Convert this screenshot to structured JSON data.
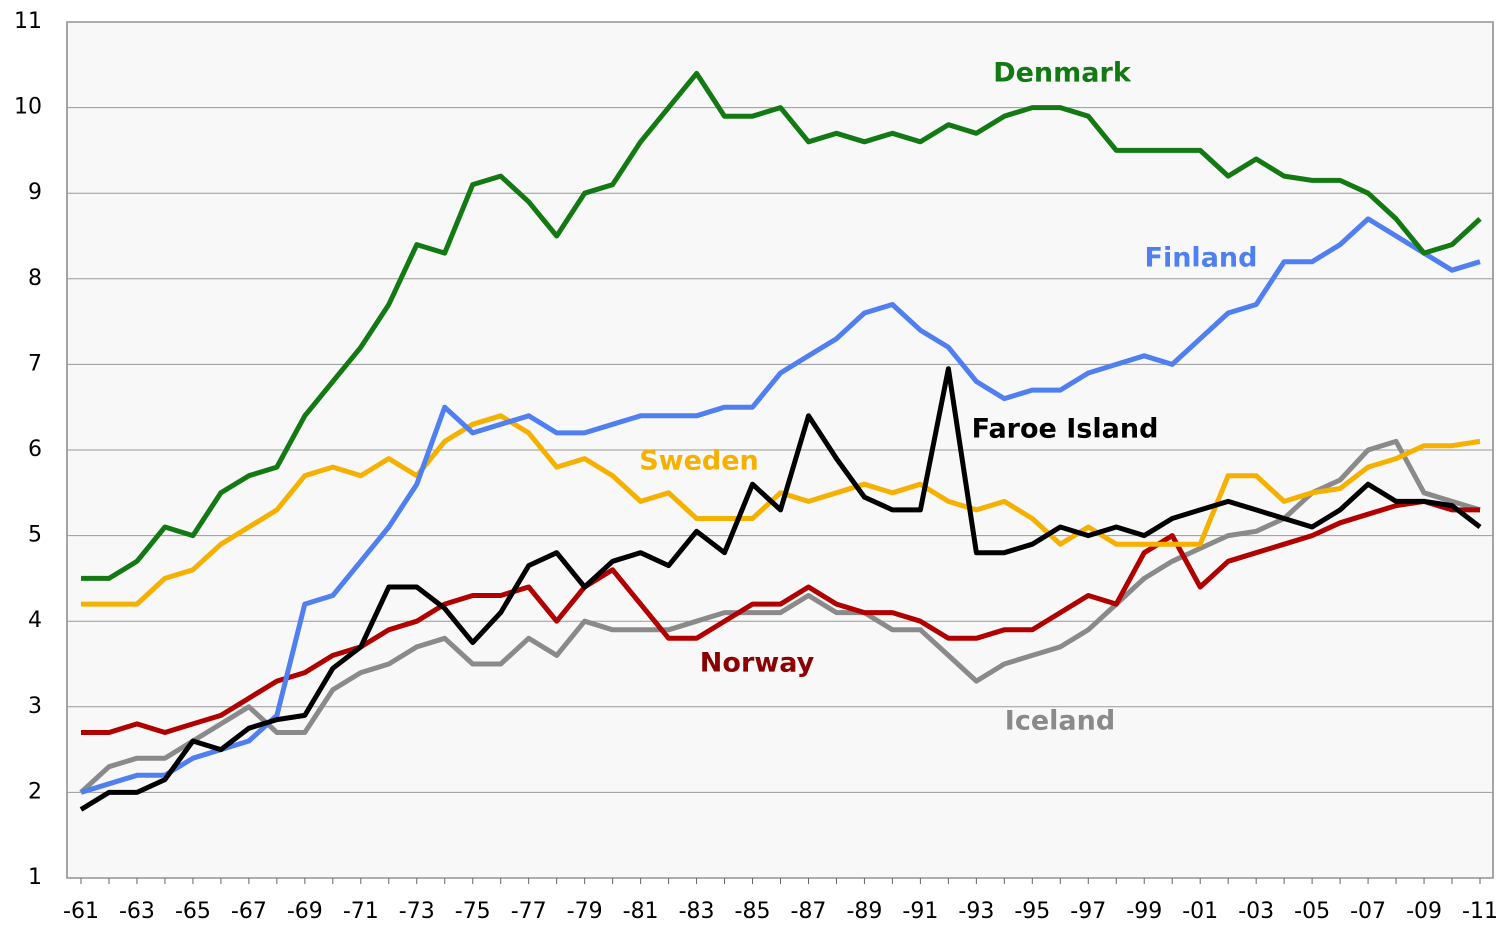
{
  "chart_data": {
    "type": "line",
    "categories": [
      "-61",
      null,
      "-63",
      null,
      "-65",
      null,
      "-67",
      null,
      "-69",
      null,
      "-71",
      null,
      "-73",
      null,
      "-75",
      null,
      "-77",
      null,
      "-79",
      null,
      "-81",
      null,
      "-83",
      null,
      "-85",
      null,
      "-87",
      null,
      "-89",
      null,
      "-91",
      null,
      "-93",
      null,
      "-95",
      null,
      "-97",
      null,
      "-99",
      null,
      "-01",
      null,
      "-03",
      null,
      "-05",
      null,
      "-07",
      null,
      "-09",
      null,
      "-11"
    ],
    "ylim": [
      1,
      11
    ],
    "yticks": [
      1,
      2,
      3,
      4,
      5,
      6,
      7,
      8,
      9,
      10,
      11
    ],
    "grid": true,
    "series": [
      {
        "name": "Iceland",
        "color": "#8a8a8a",
        "values": [
          2.0,
          2.3,
          2.4,
          2.4,
          2.6,
          2.8,
          3.0,
          2.7,
          2.7,
          3.2,
          3.4,
          3.5,
          3.7,
          3.8,
          3.5,
          3.5,
          3.8,
          3.6,
          4.0,
          3.9,
          3.9,
          3.9,
          4.0,
          4.1,
          4.1,
          4.1,
          4.3,
          4.1,
          4.1,
          3.9,
          3.9,
          3.6,
          3.3,
          3.5,
          3.6,
          3.7,
          3.9,
          4.2,
          4.5,
          4.7,
          4.85,
          5.0,
          5.05,
          5.2,
          5.5,
          5.65,
          6.0,
          6.1,
          5.5,
          5.4,
          5.3
        ]
      },
      {
        "name": "Norway",
        "color": "#b00000",
        "values": [
          2.7,
          2.7,
          2.8,
          2.7,
          2.8,
          2.9,
          3.1,
          3.3,
          3.4,
          3.6,
          3.7,
          3.9,
          4.0,
          4.2,
          4.3,
          4.3,
          4.4,
          4.0,
          4.4,
          4.6,
          4.2,
          3.8,
          3.8,
          4.0,
          4.2,
          4.2,
          4.4,
          4.2,
          4.1,
          4.1,
          4.0,
          3.8,
          3.8,
          3.9,
          3.9,
          4.1,
          4.3,
          4.2,
          4.8,
          5.0,
          4.4,
          4.7,
          4.8,
          4.9,
          5.0,
          5.15,
          5.25,
          5.35,
          5.4,
          5.3,
          5.3
        ]
      },
      {
        "name": "Sweden",
        "color": "#f5b000",
        "values": [
          4.2,
          4.2,
          4.2,
          4.5,
          4.6,
          4.9,
          5.1,
          5.3,
          5.7,
          5.8,
          5.7,
          5.9,
          5.7,
          6.1,
          6.3,
          6.4,
          6.2,
          5.8,
          5.9,
          5.7,
          5.4,
          5.5,
          5.2,
          5.2,
          5.2,
          5.5,
          5.4,
          5.5,
          5.6,
          5.5,
          5.6,
          5.4,
          5.3,
          5.4,
          5.2,
          4.9,
          5.1,
          4.9,
          4.9,
          4.9,
          4.9,
          5.7,
          5.7,
          5.4,
          5.5,
          5.55,
          5.8,
          5.9,
          6.05,
          6.05,
          6.1
        ]
      },
      {
        "name": "Finland",
        "color": "#4f7ff0",
        "values": [
          2.0,
          2.1,
          2.2,
          2.2,
          2.4,
          2.5,
          2.6,
          2.9,
          4.2,
          4.3,
          4.7,
          5.1,
          5.6,
          6.5,
          6.2,
          6.3,
          6.4,
          6.2,
          6.2,
          6.3,
          6.4,
          6.4,
          6.4,
          6.5,
          6.5,
          6.9,
          7.1,
          7.3,
          7.6,
          7.7,
          7.4,
          7.2,
          6.8,
          6.6,
          6.7,
          6.7,
          6.9,
          7.0,
          7.1,
          7.0,
          7.3,
          7.6,
          7.7,
          8.2,
          8.2,
          8.4,
          8.7,
          8.5,
          8.3,
          8.1,
          8.2
        ]
      },
      {
        "name": "Faroe Island",
        "color": "#000000",
        "values": [
          1.8,
          2.0,
          2.0,
          2.15,
          2.6,
          2.5,
          2.75,
          2.85,
          2.9,
          3.45,
          3.7,
          4.4,
          4.4,
          4.15,
          3.75,
          4.1,
          4.65,
          4.8,
          4.4,
          4.7,
          4.8,
          4.65,
          5.05,
          4.8,
          5.6,
          5.3,
          6.4,
          5.9,
          5.45,
          5.3,
          5.3,
          6.95,
          4.8,
          4.8,
          4.9,
          5.1,
          5.0,
          5.1,
          5.0,
          5.2,
          5.3,
          5.4,
          5.3,
          5.2,
          5.1,
          5.3,
          5.6,
          5.4,
          5.4,
          5.35,
          5.1
        ]
      },
      {
        "name": "Denmark",
        "color": "#137a13",
        "values": [
          4.5,
          4.5,
          4.7,
          5.1,
          5.0,
          5.5,
          5.7,
          5.8,
          6.4,
          6.8,
          7.2,
          7.7,
          8.4,
          8.3,
          9.1,
          9.2,
          8.9,
          8.5,
          9.0,
          9.1,
          9.6,
          10.0,
          10.4,
          9.9,
          9.9,
          10.0,
          9.6,
          9.7,
          9.6,
          9.7,
          9.6,
          9.8,
          9.7,
          9.9,
          10.0,
          10.0,
          9.9,
          9.5,
          9.5,
          9.5,
          9.5,
          9.2,
          9.4,
          9.2,
          9.15,
          9.15,
          9.0,
          8.7,
          8.3,
          8.4,
          8.7
        ]
      }
    ]
  }
}
